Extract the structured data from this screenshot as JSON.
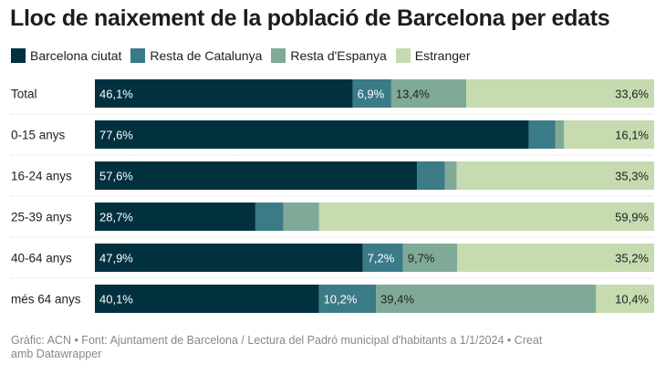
{
  "chart_data": {
    "type": "bar",
    "stacked": true,
    "orientation": "horizontal",
    "title": "Lloc de naixement de la població de Barcelona per edats",
    "categories": [
      "Total",
      "0-15 anys",
      "16-24 anys",
      "25-39 anys",
      "40-64 anys",
      "més 64 anys"
    ],
    "series": [
      {
        "name": "Barcelona ciutat",
        "color": "#01313f",
        "values": [
          46.1,
          77.6,
          57.6,
          28.7,
          47.9,
          40.1
        ],
        "labels": [
          "46,1%",
          "77,6%",
          "57,6%",
          "28,7%",
          "47,9%",
          "40,1%"
        ]
      },
      {
        "name": "Resta de Catalunya",
        "color": "#3b7a87",
        "values": [
          6.9,
          4.7,
          5.0,
          5.0,
          7.2,
          10.2
        ],
        "labels": [
          "6,9%",
          "",
          "",
          "",
          "7,2%",
          "10,2%"
        ]
      },
      {
        "name": "Resta d'Espanya",
        "color": "#7faa98",
        "values": [
          13.4,
          1.6,
          2.1,
          6.4,
          9.7,
          39.4
        ],
        "labels": [
          "13,4%",
          "",
          "",
          "",
          "9,7%",
          "39,4%"
        ]
      },
      {
        "name": "Estranger",
        "color": "#c6dbb0",
        "values": [
          33.6,
          16.1,
          35.3,
          59.9,
          35.2,
          10.4
        ],
        "labels": [
          "33,6%",
          "16,1%",
          "35,3%",
          "59,9%",
          "35,2%",
          "10,4%"
        ]
      }
    ],
    "xlim": [
      0,
      100
    ],
    "legend": "top-left",
    "grid": false
  },
  "footer": "Gràfic: ACN • Font: Ajuntament de Barcelona / Lectura del Padró municipal d'habitants a 1/1/2024  • Creat amb Datawrapper"
}
